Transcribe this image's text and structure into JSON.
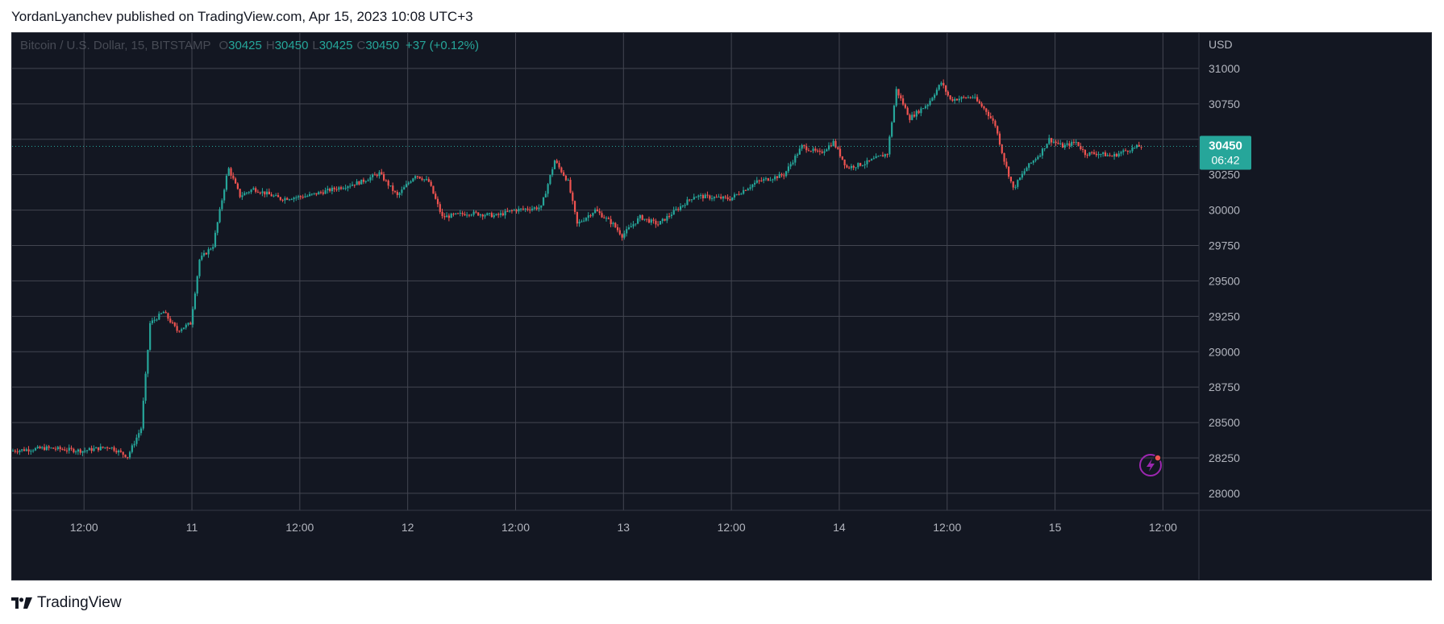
{
  "header": {
    "publish_text": "YordanLyanchev published on TradingView.com, Apr 15, 2023 10:08 UTC+3"
  },
  "legend": {
    "symbol": "Bitcoin / U.S. Dollar, 15, BITSTAMP",
    "o_label": "O",
    "o_value": "30425",
    "h_label": "H",
    "h_value": "30450",
    "l_label": "L",
    "l_value": "30425",
    "c_label": "C",
    "c_value": "30450",
    "change": "+37 (+0.12%)"
  },
  "price_tag": {
    "price": "30450",
    "countdown": "06:42"
  },
  "footer": {
    "brand": "TradingView"
  },
  "colors": {
    "background": "#131722",
    "grid": "#434651",
    "up": "#26a69a",
    "down": "#ef5350",
    "text": "#b2b5be",
    "tag": "#26a69a",
    "accent_icon": "#9c27b0"
  },
  "icons": {
    "brand": "tradingview-logo-icon",
    "bolt": "lightning-bolt-icon"
  },
  "chart_data": {
    "type": "candlestick",
    "currency": "USD",
    "interval": "15",
    "x_tick_labels": [
      "12:00",
      "11",
      "12:00",
      "12",
      "12:00",
      "13",
      "12:00",
      "14",
      "12:00",
      "15",
      "12:00"
    ],
    "x_ticks_hours": [
      12,
      24,
      36,
      48,
      60,
      72,
      84,
      96,
      108,
      120,
      132
    ],
    "x_range_hours": [
      4,
      136
    ],
    "y_tick_values": [
      28000,
      28250,
      28500,
      28750,
      29000,
      29250,
      29500,
      29750,
      30000,
      30250,
      30500,
      30750,
      31000
    ],
    "y_range": [
      27880,
      31250
    ],
    "grid": true,
    "last_price": 30450,
    "price_path": [
      [
        4,
        28300
      ],
      [
        8,
        28320
      ],
      [
        12,
        28300
      ],
      [
        15,
        28330
      ],
      [
        17,
        28260
      ],
      [
        18.5,
        28460
      ],
      [
        19.5,
        29200
      ],
      [
        21,
        29280
      ],
      [
        22.5,
        29150
      ],
      [
        24,
        29200
      ],
      [
        25,
        29650
      ],
      [
        26.5,
        29750
      ],
      [
        28.2,
        30300
      ],
      [
        29.5,
        30100
      ],
      [
        31,
        30150
      ],
      [
        34,
        30080
      ],
      [
        37,
        30100
      ],
      [
        40,
        30150
      ],
      [
        43,
        30200
      ],
      [
        45,
        30260
      ],
      [
        47,
        30100
      ],
      [
        49,
        30250
      ],
      [
        50.5,
        30200
      ],
      [
        52,
        29950
      ],
      [
        55,
        29980
      ],
      [
        58,
        29960
      ],
      [
        60,
        30000
      ],
      [
        63,
        30020
      ],
      [
        64.5,
        30350
      ],
      [
        66,
        30200
      ],
      [
        67,
        29900
      ],
      [
        69,
        30000
      ],
      [
        71,
        29900
      ],
      [
        72,
        29820
      ],
      [
        74,
        29950
      ],
      [
        76,
        29900
      ],
      [
        78,
        30000
      ],
      [
        80,
        30100
      ],
      [
        84,
        30080
      ],
      [
        87,
        30200
      ],
      [
        90,
        30250
      ],
      [
        92,
        30450
      ],
      [
        94,
        30400
      ],
      [
        95.5,
        30480
      ],
      [
        97,
        30300
      ],
      [
        99,
        30330
      ],
      [
        101.5,
        30400
      ],
      [
        102.5,
        30850
      ],
      [
        104,
        30650
      ],
      [
        106,
        30750
      ],
      [
        107.5,
        30900
      ],
      [
        108.5,
        30780
      ],
      [
        111,
        30800
      ],
      [
        112.5,
        30700
      ],
      [
        113.5,
        30600
      ],
      [
        114.5,
        30350
      ],
      [
        115.5,
        30150
      ],
      [
        117,
        30300
      ],
      [
        118.5,
        30400
      ],
      [
        119.5,
        30500
      ],
      [
        121,
        30450
      ],
      [
        122.5,
        30480
      ],
      [
        123.5,
        30400
      ],
      [
        125,
        30400
      ],
      [
        126.5,
        30380
      ],
      [
        128,
        30420
      ],
      [
        129.5,
        30450
      ]
    ]
  }
}
